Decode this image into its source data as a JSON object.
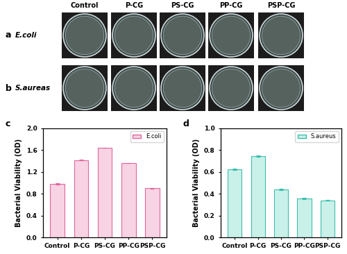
{
  "plates": {
    "columns": [
      "Control",
      "P-CG",
      "PS-CG",
      "PP-CG",
      "PSP-CG"
    ],
    "rows": [
      {
        "panel": "a",
        "label": "E.coli"
      },
      {
        "panel": "b",
        "label": "S.aureas"
      }
    ]
  },
  "chart_data": [
    {
      "type": "bar",
      "panel_label": "c",
      "y_label": "Bacterial Viability (OD)",
      "categories": [
        "Control",
        "P-CG",
        "PS-CG",
        "PP-CG",
        "PSP-CG"
      ],
      "series": [
        {
          "name": "E.coli",
          "color": "#f7d3e3",
          "edge_color": "#e0669c",
          "values": [
            0.98,
            1.42,
            1.64,
            1.36,
            0.9
          ],
          "errors": [
            0.01,
            0.01,
            0.0,
            0.0,
            0.01
          ]
        }
      ],
      "ylim": [
        0,
        2.0
      ],
      "yticks": [
        {
          "value": 0,
          "label": "0.0"
        },
        {
          "value": 0.4,
          "label": "0.4"
        },
        {
          "value": 0.8,
          "label": "0.8"
        },
        {
          "value": 1.2,
          "label": "1.2"
        },
        {
          "value": 1.6,
          "label": "1.6"
        },
        {
          "value": 2.0,
          "label": "2.0"
        }
      ],
      "legend": "upper right"
    },
    {
      "type": "bar",
      "panel_label": "d",
      "y_label": "Bacterial Viability (OD)",
      "categories": [
        "Control",
        "P-CG",
        "PS-CG",
        "PP-CG",
        "PSP-CG"
      ],
      "series": [
        {
          "name": "S.aureus",
          "color": "#c9f0e9",
          "edge_color": "#3bbfad",
          "values": [
            0.625,
            0.745,
            0.44,
            0.355,
            0.34
          ],
          "errors": [
            0.005,
            0.005,
            0.008,
            0.005,
            0.005
          ]
        }
      ],
      "ylim": [
        0,
        1.0
      ],
      "yticks": [
        {
          "value": 0,
          "label": "0.0"
        },
        {
          "value": 0.2,
          "label": "0.2"
        },
        {
          "value": 0.4,
          "label": "0.4"
        },
        {
          "value": 0.6,
          "label": "0.6"
        },
        {
          "value": 0.8,
          "label": "0.8"
        },
        {
          "value": 1.0,
          "label": "1.0"
        }
      ],
      "legend": "upper right"
    }
  ]
}
